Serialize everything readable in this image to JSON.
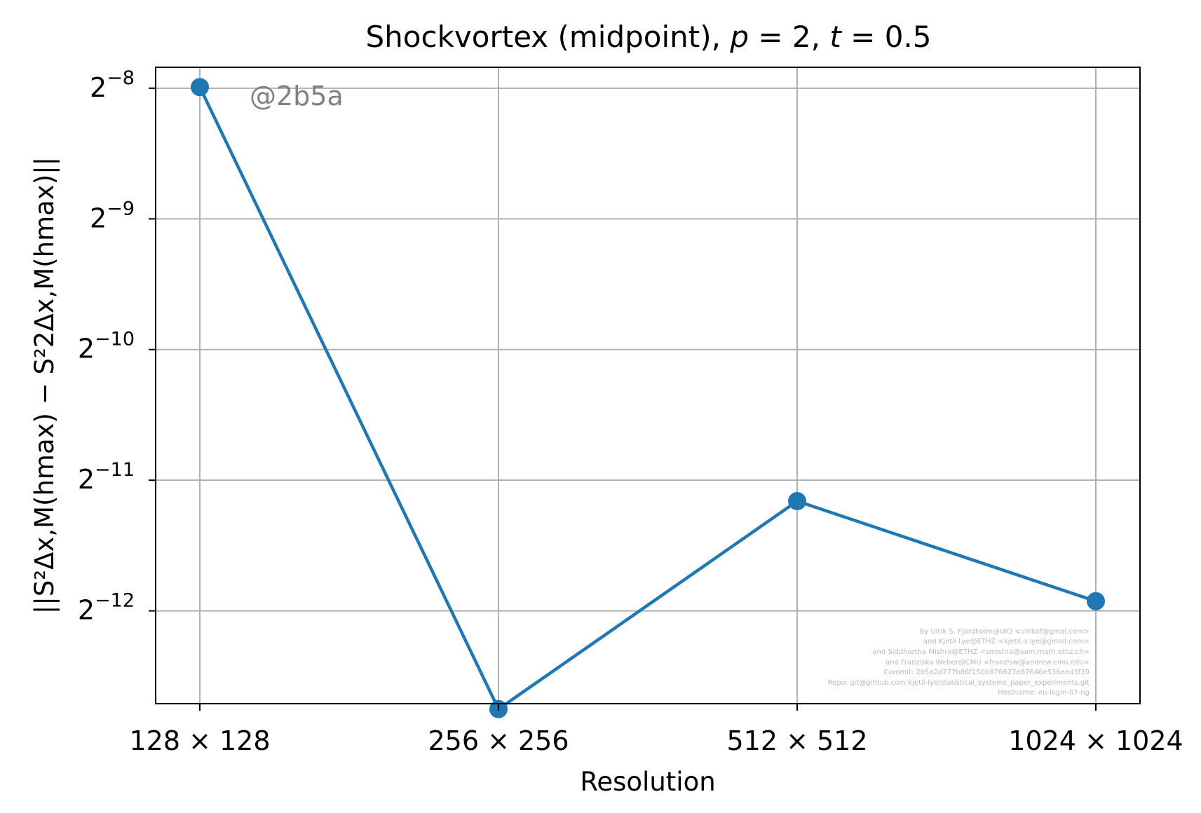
{
  "chart_data": {
    "type": "line",
    "title": {
      "prefix": "Shockvortex (midpoint), ",
      "p_symbol": "p",
      "p_value": " = 2, ",
      "t_symbol": "t",
      "t_value": " = 0.5"
    },
    "xlabel": "Resolution",
    "ylabel": "||S²Δx,M(hmax) − S²2Δx,M(hmax)||",
    "categories": [
      "128 × 128",
      "256 × 256",
      "512 × 512",
      "1024 × 1024"
    ],
    "series": [
      {
        "color": "#1f77b4",
        "marker": "circle",
        "values": [
          0.00393,
          0.000145,
          0.000437,
          0.000257
        ]
      }
    ],
    "y_scale": "log2",
    "y_ticks": [
      {
        "base": "2",
        "exp": "−8"
      },
      {
        "base": "2",
        "exp": "−9"
      },
      {
        "base": "2",
        "exp": "−10"
      },
      {
        "base": "2",
        "exp": "−11"
      },
      {
        "base": "2",
        "exp": "−12"
      }
    ],
    "y_tick_exponents": [
      -8,
      -9,
      -10,
      -11,
      -12
    ],
    "ylim_log2": [
      -12.71,
      -7.84
    ],
    "grid": true,
    "legend": "none"
  },
  "watermark": "@2b5a",
  "credits": [
    "By Ulrik S. Fjordholm@UiO <ulriksf@gmal.com>",
    "and Kjetil Lye@ETHZ <kjetil.o.lye@gmail.com>",
    "and Siddhartha Mishra@ETHZ <smishra@sam.math.ethz.ch>",
    "and Franziska Weber@CMU <franzisw@andrew.cmu.edu>",
    "Commit: 2b5a2d777b86f150b976627e87646e536eed3f39",
    "Repo: git@github.com:kjetil-lye/statistical_systems_paper_experiments.git",
    "Hostname: eu-login-07-ng"
  ],
  "colors": {
    "series": "#1f77b4",
    "grid": "#b0b0b0",
    "watermark": "#808080",
    "credits": "#b8b8b8"
  }
}
